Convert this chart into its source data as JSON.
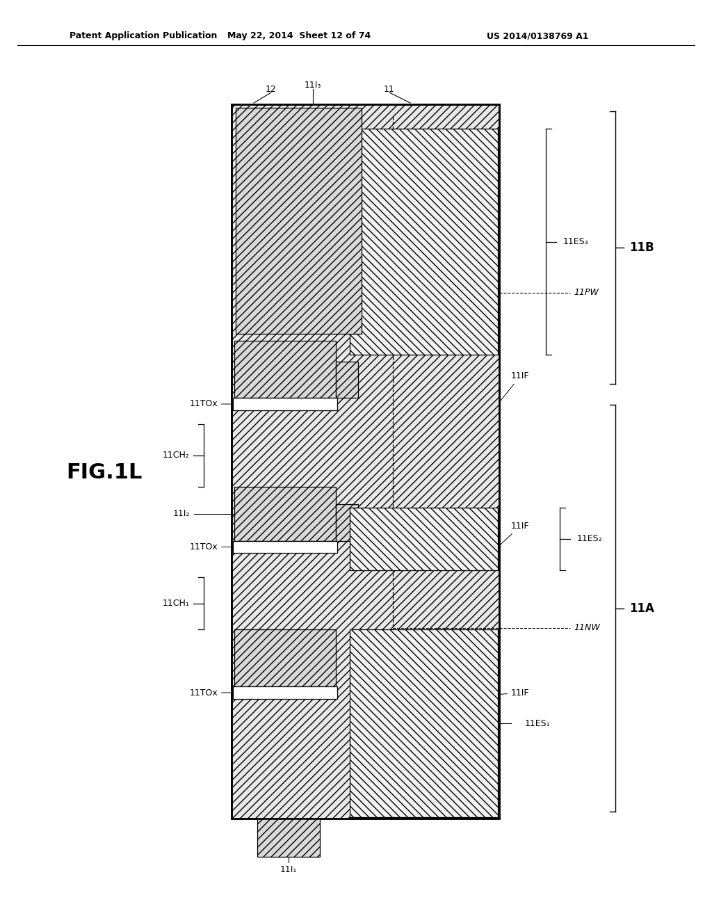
{
  "bg": "#ffffff",
  "header_left": "Patent Application Publication",
  "header_mid": "May 22, 2014  Sheet 12 of 74",
  "header_right": "US 2014/0138769 A1",
  "fig_label": "FIG.1L",
  "substrate_hatch": "////",
  "gate_hatch": "///",
  "es_hatch": "////",
  "lw_main": 1.5,
  "lw_inner": 0.9
}
